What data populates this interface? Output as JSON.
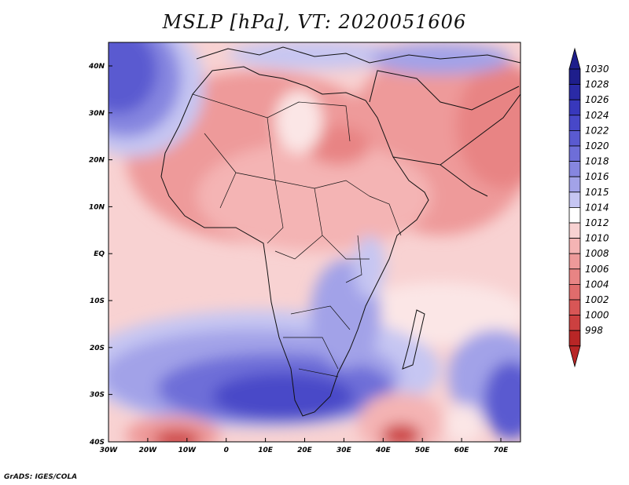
{
  "title": "MSLP [hPa], VT: 2020051606",
  "footer": "GrADS: IGES/COLA",
  "map": {
    "region": "Africa and surrounding oceans",
    "lat_labels": [
      "40N",
      "30N",
      "20N",
      "10N",
      "EQ",
      "10S",
      "20S",
      "30S",
      "40S"
    ],
    "lon_labels": [
      "30W",
      "20W",
      "10W",
      "0",
      "10E",
      "20E",
      "30E",
      "40E",
      "50E",
      "60E",
      "70E"
    ]
  },
  "colorbar": {
    "labels": [
      "1030",
      "1028",
      "1026",
      "1024",
      "1022",
      "1020",
      "1018",
      "1016",
      "1015",
      "1014",
      "1012",
      "1010",
      "1008",
      "1006",
      "1004",
      "1002",
      "1000",
      "998"
    ],
    "colors": [
      "#1e1e8c",
      "#2a2aa6",
      "#3838bc",
      "#4848c8",
      "#5a5ad0",
      "#6e6ed8",
      "#8686e0",
      "#a2a2e8",
      "#c6c6f2",
      "#ffffff",
      "#f8d2d2",
      "#f4b4b4",
      "#ee9a9a",
      "#e88484",
      "#e06c6c",
      "#d85656",
      "#cc4040",
      "#b82626"
    ],
    "top_arrow_color": "#1e1e8c",
    "bottom_arrow_color": "#b82626"
  }
}
